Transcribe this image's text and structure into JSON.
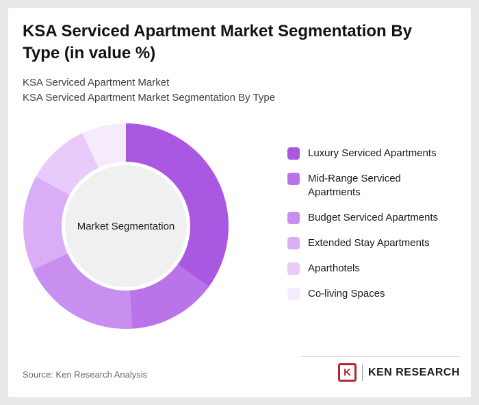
{
  "header": {
    "title": "KSA Serviced Apartment Market Segmentation By Type (in value %)",
    "subtitle_line1": "KSA Serviced Apartment Market",
    "subtitle_line2": "KSA Serviced Apartment Market Segmentation By Type"
  },
  "chart_data": {
    "type": "pie",
    "donut": true,
    "center_label": "Market Segmentation",
    "legend_position": "right",
    "unit": "%",
    "categories": [
      "Luxury Serviced Apartments",
      "Mid-Range Serviced Apartments",
      "Budget Serviced Apartments",
      "Extended Stay Apartments",
      "Aparthotels",
      "Co-living Spaces"
    ],
    "values": [
      35,
      14,
      19,
      15,
      10,
      7
    ],
    "colors": [
      "#aa58e2",
      "#ba74ea",
      "#c98ff0",
      "#d9aef6",
      "#e8cbfa",
      "#f5ebfd"
    ],
    "hole_color": "#f0f0f0",
    "start_angle_deg": 0
  },
  "footer": {
    "source": "Source: Ken Research Analysis",
    "brand_mark": "K",
    "brand_text": "KEN RESEARCH",
    "brand_color": "#b3282d"
  }
}
